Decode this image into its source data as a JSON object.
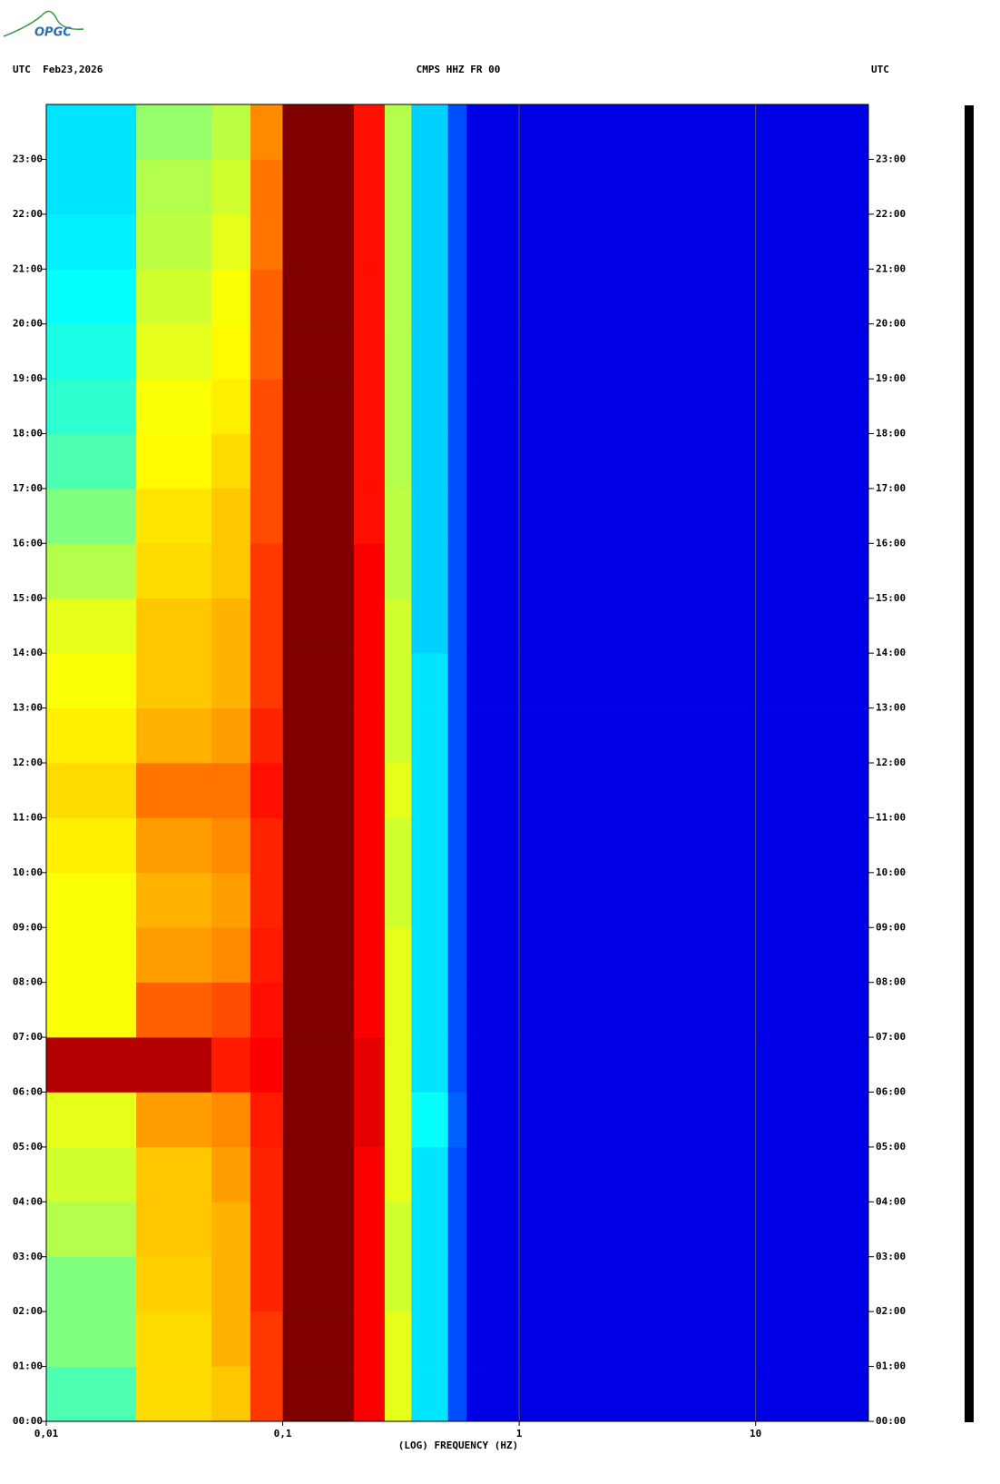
{
  "logo": "OPGC",
  "chart_data": {
    "type": "spectrogram",
    "header_left": "UTC  Feb23,2026",
    "title": "CMPS HHZ FR 00",
    "header_right": "UTC",
    "xlabel": "(LOG) FREQUENCY (HZ)",
    "xscale": "log",
    "xlim": [
      0.01,
      30
    ],
    "xticks": [
      {
        "value": 0.01,
        "label": "0,01"
      },
      {
        "value": 0.1,
        "label": "0,1"
      },
      {
        "value": 1,
        "label": "1"
      },
      {
        "value": 10,
        "label": "10"
      }
    ],
    "ylim": [
      0,
      24
    ],
    "yticks": [
      {
        "value": 0,
        "label": "00:00"
      },
      {
        "value": 1,
        "label": "01:00"
      },
      {
        "value": 2,
        "label": "02:00"
      },
      {
        "value": 3,
        "label": "03:00"
      },
      {
        "value": 4,
        "label": "04:00"
      },
      {
        "value": 5,
        "label": "05:00"
      },
      {
        "value": 6,
        "label": "06:00"
      },
      {
        "value": 7,
        "label": "07:00"
      },
      {
        "value": 8,
        "label": "08:00"
      },
      {
        "value": 9,
        "label": "09:00"
      },
      {
        "value": 10,
        "label": "10:00"
      },
      {
        "value": 11,
        "label": "11:00"
      },
      {
        "value": 12,
        "label": "12:00"
      },
      {
        "value": 13,
        "label": "13:00"
      },
      {
        "value": 14,
        "label": "14:00"
      },
      {
        "value": 15,
        "label": "15:00"
      },
      {
        "value": 16,
        "label": "16:00"
      },
      {
        "value": 17,
        "label": "17:00"
      },
      {
        "value": 18,
        "label": "18:00"
      },
      {
        "value": 19,
        "label": "19:00"
      },
      {
        "value": 20,
        "label": "20:00"
      },
      {
        "value": 21,
        "label": "21:00"
      },
      {
        "value": 22,
        "label": "22:00"
      },
      {
        "value": 23,
        "label": "23:00"
      }
    ],
    "colormap": "jet",
    "zlim": [
      0,
      1
    ],
    "grid": true,
    "band_edges": [
      0.01,
      0.024,
      0.05,
      0.073,
      0.1,
      0.2,
      0.27,
      0.35,
      0.5,
      0.6,
      30
    ],
    "levels": [
      [
        0.45,
        0.66,
        0.68,
        0.82,
        1,
        0.88,
        0.6,
        0.35,
        0.2,
        0.1
      ],
      [
        0.5,
        0.66,
        0.7,
        0.82,
        1,
        0.88,
        0.6,
        0.35,
        0.2,
        0.1
      ],
      [
        0.5,
        0.67,
        0.7,
        0.84,
        1,
        0.88,
        0.58,
        0.35,
        0.2,
        0.1
      ],
      [
        0.55,
        0.68,
        0.7,
        0.84,
        1,
        0.88,
        0.58,
        0.35,
        0.2,
        0.1
      ],
      [
        0.58,
        0.68,
        0.72,
        0.84,
        1,
        0.88,
        0.6,
        0.35,
        0.2,
        0.1
      ],
      [
        0.6,
        0.72,
        0.74,
        0.85,
        1,
        0.9,
        0.6,
        0.38,
        0.22,
        0.1
      ],
      [
        0.95,
        0.95,
        0.85,
        0.88,
        1,
        0.9,
        0.6,
        0.35,
        0.2,
        0.1
      ],
      [
        0.62,
        0.78,
        0.8,
        0.86,
        1,
        0.88,
        0.6,
        0.35,
        0.2,
        0.1
      ],
      [
        0.62,
        0.72,
        0.74,
        0.85,
        1,
        0.88,
        0.6,
        0.35,
        0.2,
        0.1
      ],
      [
        0.62,
        0.7,
        0.72,
        0.84,
        1,
        0.88,
        0.58,
        0.35,
        0.2,
        0.1
      ],
      [
        0.64,
        0.72,
        0.74,
        0.84,
        1,
        0.88,
        0.58,
        0.35,
        0.2,
        0.1
      ],
      [
        0.66,
        0.76,
        0.76,
        0.86,
        1,
        0.88,
        0.6,
        0.35,
        0.2,
        0.1
      ],
      [
        0.64,
        0.7,
        0.72,
        0.84,
        1,
        0.88,
        0.58,
        0.35,
        0.2,
        0.1
      ],
      [
        0.62,
        0.68,
        0.7,
        0.82,
        1,
        0.88,
        0.58,
        0.35,
        0.2,
        0.1
      ],
      [
        0.6,
        0.68,
        0.7,
        0.82,
        1,
        0.88,
        0.58,
        0.33,
        0.2,
        0.1
      ],
      [
        0.55,
        0.66,
        0.68,
        0.82,
        1,
        0.88,
        0.56,
        0.33,
        0.2,
        0.1
      ],
      [
        0.5,
        0.65,
        0.68,
        0.8,
        1,
        0.86,
        0.56,
        0.33,
        0.2,
        0.1
      ],
      [
        0.45,
        0.63,
        0.66,
        0.8,
        1,
        0.86,
        0.55,
        0.33,
        0.2,
        0.1
      ],
      [
        0.42,
        0.62,
        0.64,
        0.8,
        1,
        0.86,
        0.55,
        0.33,
        0.2,
        0.1
      ],
      [
        0.4,
        0.6,
        0.63,
        0.78,
        1,
        0.86,
        0.55,
        0.33,
        0.2,
        0.1
      ],
      [
        0.38,
        0.58,
        0.62,
        0.78,
        1,
        0.86,
        0.55,
        0.33,
        0.2,
        0.1
      ],
      [
        0.36,
        0.56,
        0.6,
        0.76,
        1,
        0.86,
        0.55,
        0.33,
        0.2,
        0.1
      ],
      [
        0.35,
        0.55,
        0.58,
        0.76,
        1,
        0.86,
        0.55,
        0.33,
        0.2,
        0.1
      ],
      [
        0.35,
        0.52,
        0.56,
        0.74,
        1,
        0.86,
        0.55,
        0.33,
        0.2,
        0.1
      ]
    ]
  }
}
